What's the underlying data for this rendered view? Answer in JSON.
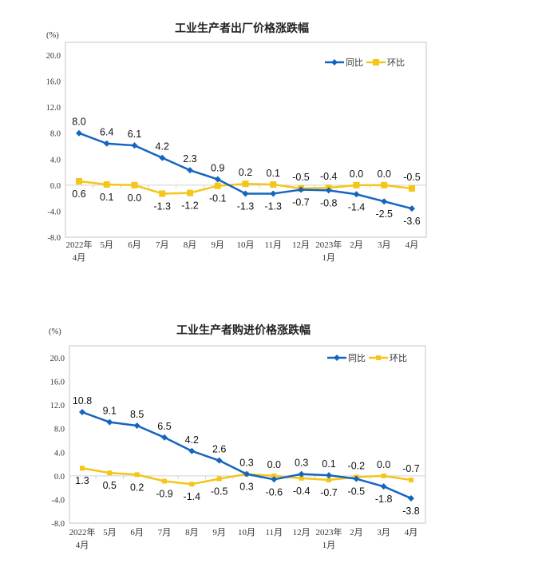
{
  "chart_data": [
    {
      "type": "line",
      "title": "工业生产者出厂价格涨跌幅",
      "ylabel": "(%)",
      "ylim": [
        -8.0,
        20.0
      ],
      "yticks": [
        "20.0",
        "16.0",
        "12.0",
        "8.0",
        "4.0",
        "0.0",
        "-4.0",
        "-8.0"
      ],
      "ytick_values": [
        20,
        16,
        12,
        8,
        4,
        0,
        -4,
        -8
      ],
      "categories": [
        [
          "2022年",
          "4月"
        ],
        [
          "5月"
        ],
        [
          "6月"
        ],
        [
          "7月"
        ],
        [
          "8月"
        ],
        [
          "9月"
        ],
        [
          "10月"
        ],
        [
          "11月"
        ],
        [
          "12月"
        ],
        [
          "2023年",
          "1月"
        ],
        [
          "2月"
        ],
        [
          "3月"
        ],
        [
          "4月"
        ]
      ],
      "legend_position": "top-right",
      "series": [
        {
          "name": "同比",
          "color": "#1565c0",
          "marker": "diamond",
          "values": [
            8.0,
            6.4,
            6.1,
            4.2,
            2.3,
            0.9,
            -1.3,
            -1.3,
            -0.7,
            -0.8,
            -1.4,
            -2.5,
            -3.6
          ],
          "labels": [
            "8.0",
            "6.4",
            "6.1",
            "4.2",
            "2.3",
            "0.9",
            "-1.3",
            "-1.3",
            "-0.7",
            "-0.8",
            "-1.4",
            "-2.5",
            "-3.6"
          ]
        },
        {
          "name": "环比",
          "color": "#f5c518",
          "marker": "square",
          "values": [
            0.6,
            0.1,
            0.0,
            -1.3,
            -1.2,
            -0.1,
            0.2,
            0.1,
            -0.5,
            -0.4,
            0.0,
            0.0,
            -0.5
          ],
          "labels": [
            "0.6",
            "0.1",
            "0.0",
            "-1.3",
            "-1.2",
            "-0.1",
            "0.2",
            "0.1",
            "-0.5",
            "-0.4",
            "0.0",
            "0.0",
            "-0.5"
          ]
        }
      ]
    },
    {
      "type": "line",
      "title": "工业生产者购进价格涨跌幅",
      "ylabel": "(%)",
      "ylim": [
        -8.0,
        20.0
      ],
      "yticks": [
        "20.0",
        "16.0",
        "12.0",
        "8.0",
        "4.0",
        "0.0",
        "-4.0",
        "-8.0"
      ],
      "ytick_values": [
        20,
        16,
        12,
        8,
        4,
        0,
        -4,
        -8
      ],
      "categories": [
        [
          "2022年",
          "4月"
        ],
        [
          "5月"
        ],
        [
          "6月"
        ],
        [
          "7月"
        ],
        [
          "8月"
        ],
        [
          "9月"
        ],
        [
          "10月"
        ],
        [
          "11月"
        ],
        [
          "12月"
        ],
        [
          "2023年",
          "1月"
        ],
        [
          "2月"
        ],
        [
          "3月"
        ],
        [
          "4月"
        ]
      ],
      "legend_position": "top-right",
      "series": [
        {
          "name": "同比",
          "color": "#1565c0",
          "marker": "diamond",
          "values": [
            10.8,
            9.1,
            8.5,
            6.5,
            4.2,
            2.6,
            0.3,
            -0.6,
            0.3,
            0.1,
            -0.5,
            -1.8,
            -3.8
          ],
          "labels": [
            "10.8",
            "9.1",
            "8.5",
            "6.5",
            "4.2",
            "2.6",
            "0.3",
            "-0.6",
            "0.3",
            "0.1",
            "-0.5",
            "-1.8",
            "-3.8"
          ]
        },
        {
          "name": "环比",
          "color": "#f5c518",
          "marker": "square-small",
          "values": [
            1.3,
            0.5,
            0.2,
            -0.9,
            -1.4,
            -0.5,
            0.3,
            0.0,
            -0.4,
            -0.7,
            -0.2,
            0.0,
            -0.7
          ],
          "labels": [
            "1.3",
            "0.5",
            "0.2",
            "-0.9",
            "-1.4",
            "-0.5",
            "0.3",
            "0.0",
            "-0.4",
            "-0.7",
            "-0.2",
            "0.0",
            "-0.7"
          ]
        }
      ]
    }
  ]
}
